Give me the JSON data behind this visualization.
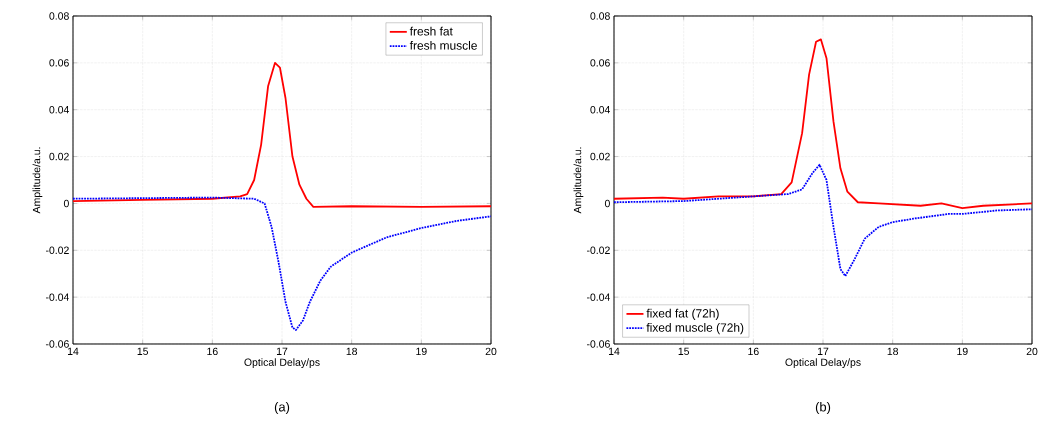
{
  "chart_data": [
    {
      "type": "line",
      "xlabel": "Optical Delay/ps",
      "ylabel": "Amplitude/a.u.",
      "annotations": [
        "(a)"
      ],
      "xlim": [
        14,
        20
      ],
      "ylim": [
        -0.06,
        0.08
      ],
      "xticks": [
        14,
        15,
        16,
        17,
        18,
        19,
        20
      ],
      "yticks": [
        -0.06,
        -0.04,
        -0.02,
        0,
        0.02,
        0.04,
        0.06,
        0.08
      ],
      "grid": true,
      "legend": "top right",
      "series": [
        {
          "name": "fresh fat",
          "color": "#ff0000",
          "line_style": "solid",
          "x": [
            14,
            15,
            16,
            16.4,
            16.5,
            16.6,
            16.7,
            16.8,
            16.9,
            16.97,
            17.05,
            17.15,
            17.25,
            17.35,
            17.45,
            18,
            19,
            20
          ],
          "values": [
            0.001,
            0.0015,
            0.002,
            0.003,
            0.004,
            0.01,
            0.025,
            0.05,
            0.06,
            0.058,
            0.045,
            0.02,
            0.008,
            0.002,
            -0.0015,
            -0.0012,
            -0.0015,
            -0.0012
          ]
        },
        {
          "name": "fresh muscle",
          "color": "#0000ff",
          "line_style": "dotted",
          "x": [
            14,
            16,
            16.6,
            16.75,
            16.85,
            16.95,
            17.05,
            17.15,
            17.2,
            17.3,
            17.4,
            17.55,
            17.7,
            18,
            18.5,
            19,
            19.5,
            20
          ],
          "values": [
            0.002,
            0.0025,
            0.002,
            0,
            -0.01,
            -0.025,
            -0.042,
            -0.053,
            -0.054,
            -0.05,
            -0.042,
            -0.033,
            -0.027,
            -0.021,
            -0.0145,
            -0.0105,
            -0.0075,
            -0.0055
          ]
        }
      ]
    },
    {
      "type": "line",
      "xlabel": "Optical Delay/ps",
      "ylabel": "Amplitude/a.u.",
      "annotations": [
        "(b)"
      ],
      "xlim": [
        14,
        20
      ],
      "ylim": [
        -0.06,
        0.08
      ],
      "xticks": [
        14,
        15,
        16,
        17,
        18,
        19,
        20
      ],
      "yticks": [
        -0.06,
        -0.04,
        -0.02,
        0,
        0.02,
        0.04,
        0.06,
        0.08
      ],
      "grid": true,
      "legend": "bottom left",
      "series": [
        {
          "name": "fixed fat (72h)",
          "color": "#ff0000",
          "line_style": "solid",
          "x": [
            14,
            14.7,
            15,
            15.5,
            16,
            16.4,
            16.55,
            16.7,
            16.8,
            16.9,
            16.97,
            17.05,
            17.15,
            17.25,
            17.35,
            17.5,
            17.8,
            18.4,
            18.7,
            19,
            19.3,
            20
          ],
          "values": [
            0.002,
            0.0025,
            0.002,
            0.003,
            0.003,
            0.004,
            0.009,
            0.03,
            0.055,
            0.069,
            0.07,
            0.062,
            0.035,
            0.015,
            0.005,
            0.0005,
            0,
            -0.001,
            0,
            -0.002,
            -0.001,
            0
          ]
        },
        {
          "name": "fixed muscle (72h)",
          "color": "#0000ff",
          "line_style": "dotted",
          "x": [
            14,
            15,
            15.5,
            16,
            16.5,
            16.7,
            16.85,
            16.95,
            17.05,
            17.15,
            17.25,
            17.32,
            17.45,
            17.6,
            17.8,
            18,
            18.3,
            18.8,
            19,
            19.5,
            20
          ],
          "values": [
            0.0005,
            0.001,
            0.002,
            0.003,
            0.004,
            0.006,
            0.013,
            0.0165,
            0.01,
            -0.01,
            -0.028,
            -0.031,
            -0.024,
            -0.015,
            -0.01,
            -0.008,
            -0.0065,
            -0.0045,
            -0.0045,
            -0.003,
            -0.0025
          ]
        }
      ]
    }
  ]
}
